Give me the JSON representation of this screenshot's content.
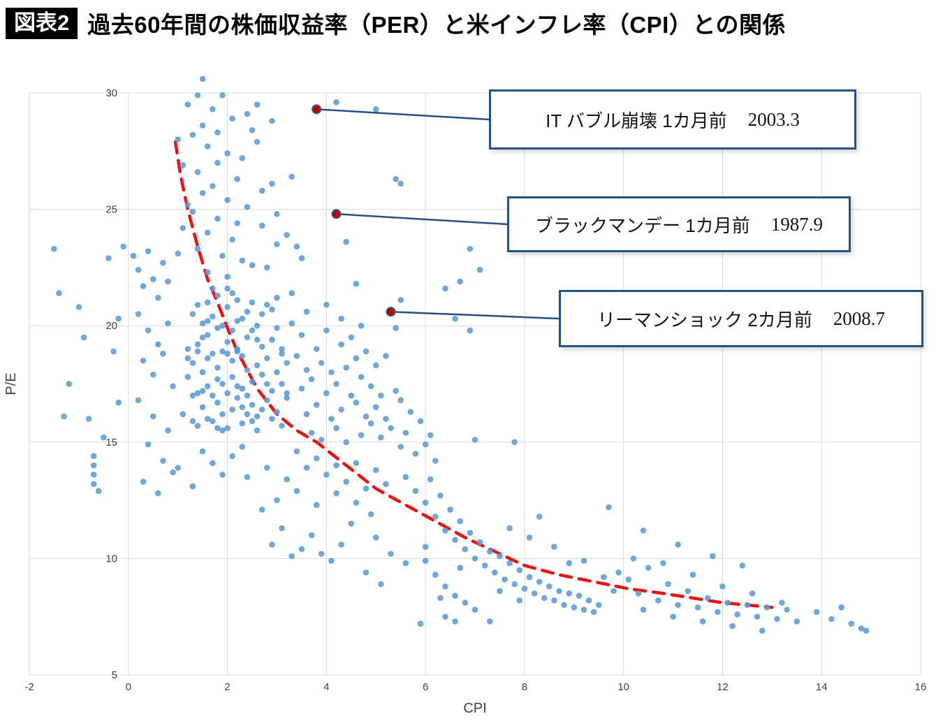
{
  "header": {
    "badge": "図表2",
    "title": "過去60年間の株価収益率（PER）と米インフレ率（CPI）との関係"
  },
  "chart_data": {
    "type": "scatter",
    "title": "過去60年間の株価収益率（PER）と米インフレ率（CPI）との関係",
    "xlabel": "CPI",
    "ylabel": "P/E",
    "xlim": [
      -2,
      16
    ],
    "ylim": [
      5,
      30
    ],
    "xticks": [
      -2,
      0,
      2,
      4,
      6,
      8,
      10,
      12,
      14,
      16
    ],
    "yticks": [
      5,
      10,
      15,
      20,
      25,
      30
    ],
    "grid": true,
    "point_color": "#5b9bd5",
    "highlight_color": "#c00000",
    "highlight_ring_color": "#2e5a88",
    "trend_color": "#f01010",
    "grid_color": "#d9d9d9",
    "leader_color": "#255083",
    "highlights": [
      {
        "cpi": 3.8,
        "pe": 29.3,
        "label": "IT バブル崩壊 1カ月前",
        "date": "2003.3"
      },
      {
        "cpi": 4.2,
        "pe": 24.8,
        "label": "ブラックマンデー 1カ月前",
        "date": "1987.9"
      },
      {
        "cpi": 5.3,
        "pe": 20.6,
        "label": "リーマンショック 2カ月前",
        "date": "2008.7"
      }
    ],
    "trend": {
      "style": "dashed",
      "points": [
        [
          0.95,
          27.9
        ],
        [
          1.05,
          26.5
        ],
        [
          1.2,
          25.0
        ],
        [
          1.4,
          23.4
        ],
        [
          1.6,
          22.0
        ],
        [
          1.8,
          21.0
        ],
        [
          2.0,
          19.9
        ],
        [
          2.2,
          18.9
        ],
        [
          2.6,
          17.3
        ],
        [
          3.0,
          16.2
        ],
        [
          3.4,
          15.5
        ],
        [
          3.8,
          15.0
        ],
        [
          4.4,
          14.0
        ],
        [
          5.0,
          13.0
        ],
        [
          5.6,
          12.3
        ],
        [
          6.2,
          11.6
        ],
        [
          6.8,
          10.9
        ],
        [
          7.4,
          10.3
        ],
        [
          8.0,
          9.7
        ],
        [
          8.7,
          9.3
        ],
        [
          9.4,
          9.0
        ],
        [
          10.1,
          8.7
        ],
        [
          10.8,
          8.5
        ],
        [
          11.4,
          8.3
        ],
        [
          12.0,
          8.1
        ],
        [
          12.5,
          8.0
        ],
        [
          13.0,
          7.9
        ]
      ]
    },
    "points": [
      [
        1.1,
        16.2
      ],
      [
        1.2,
        17.8
      ],
      [
        1.3,
        15.9
      ],
      [
        1.3,
        18.4
      ],
      [
        1.4,
        17.1
      ],
      [
        1.4,
        19.2
      ],
      [
        1.5,
        16.5
      ],
      [
        1.5,
        18.0
      ],
      [
        1.5,
        20.1
      ],
      [
        1.6,
        17.4
      ],
      [
        1.6,
        19.6
      ],
      [
        1.6,
        16.0
      ],
      [
        1.7,
        18.8
      ],
      [
        1.7,
        17.0
      ],
      [
        1.7,
        20.4
      ],
      [
        1.8,
        16.7
      ],
      [
        1.8,
        18.2
      ],
      [
        1.8,
        19.9
      ],
      [
        1.9,
        17.5
      ],
      [
        1.9,
        16.2
      ],
      [
        1.9,
        18.9
      ],
      [
        2.0,
        17.1
      ],
      [
        2.0,
        19.3
      ],
      [
        2.0,
        20.8
      ],
      [
        2.1,
        16.4
      ],
      [
        2.1,
        18.5
      ],
      [
        2.1,
        17.8
      ],
      [
        2.2,
        19.0
      ],
      [
        2.2,
        16.9
      ],
      [
        2.2,
        20.2
      ],
      [
        2.3,
        17.3
      ],
      [
        2.3,
        18.7
      ],
      [
        2.3,
        15.8
      ],
      [
        2.4,
        19.5
      ],
      [
        2.4,
        17.0
      ],
      [
        2.4,
        18.1
      ],
      [
        2.5,
        16.6
      ],
      [
        2.5,
        19.8
      ],
      [
        2.5,
        17.6
      ],
      [
        2.6,
        18.3
      ],
      [
        2.6,
        16.1
      ],
      [
        2.6,
        20.0
      ],
      [
        2.7,
        17.9
      ],
      [
        2.7,
        19.1
      ],
      [
        2.8,
        16.8
      ],
      [
        2.8,
        18.6
      ],
      [
        2.9,
        17.2
      ],
      [
        2.9,
        19.4
      ],
      [
        3.0,
        16.3
      ],
      [
        3.0,
        18.0
      ],
      [
        3.1,
        17.5
      ],
      [
        3.1,
        19.0
      ],
      [
        3.2,
        16.9
      ],
      [
        3.2,
        18.4
      ],
      [
        1.2,
        19.0
      ],
      [
        1.3,
        20.5
      ],
      [
        1.4,
        15.7
      ],
      [
        1.6,
        21.0
      ],
      [
        1.8,
        21.3
      ],
      [
        2.0,
        15.6
      ],
      [
        2.2,
        21.1
      ],
      [
        2.4,
        20.6
      ],
      [
        2.6,
        15.5
      ],
      [
        2.8,
        20.9
      ],
      [
        3.0,
        21.2
      ],
      [
        1.5,
        17.2
      ],
      [
        1.7,
        15.9
      ],
      [
        1.9,
        20.0
      ],
      [
        2.1,
        21.4
      ],
      [
        2.3,
        20.3
      ],
      [
        2.5,
        15.9
      ],
      [
        2.7,
        16.4
      ],
      [
        2.9,
        20.7
      ],
      [
        3.1,
        15.7
      ],
      [
        1.2,
        18.6
      ],
      [
        1.4,
        20.9
      ],
      [
        1.6,
        18.6
      ],
      [
        1.8,
        17.7
      ],
      [
        2.0,
        18.8
      ],
      [
        2.2,
        17.4
      ],
      [
        2.4,
        16.2
      ],
      [
        2.6,
        19.4
      ],
      [
        2.8,
        17.5
      ],
      [
        3.0,
        19.9
      ],
      [
        3.2,
        17.1
      ],
      [
        1.3,
        17.0
      ],
      [
        1.5,
        19.5
      ],
      [
        1.7,
        21.6
      ],
      [
        1.9,
        15.5
      ],
      [
        2.1,
        19.8
      ],
      [
        2.3,
        16.5
      ],
      [
        2.5,
        21.0
      ],
      [
        2.7,
        20.5
      ],
      [
        2.9,
        16.0
      ],
      [
        3.1,
        18.8
      ],
      [
        1.4,
        18.9
      ],
      [
        1.6,
        20.2
      ],
      [
        1.8,
        15.6
      ],
      [
        2.0,
        21.6
      ],
      [
        2.2,
        18.9
      ],
      [
        1.5,
        30.6
      ],
      [
        1.4,
        29.9
      ],
      [
        1.9,
        29.9
      ],
      [
        1.7,
        29.3
      ],
      [
        2.1,
        28.9
      ],
      [
        1.5,
        28.6
      ],
      [
        1.3,
        28.2
      ],
      [
        2.4,
        29.1
      ],
      [
        1.6,
        27.7
      ],
      [
        2.0,
        27.4
      ],
      [
        1.8,
        27.0
      ],
      [
        2.6,
        27.9
      ],
      [
        1.4,
        26.6
      ],
      [
        2.2,
        26.3
      ],
      [
        1.7,
        26.0
      ],
      [
        2.9,
        26.1
      ],
      [
        1.5,
        25.7
      ],
      [
        2.0,
        25.4
      ],
      [
        2.4,
        25.1
      ],
      [
        1.3,
        24.9
      ],
      [
        1.8,
        24.6
      ],
      [
        2.7,
        24.3
      ],
      [
        1.6,
        24.0
      ],
      [
        2.1,
        23.7
      ],
      [
        3.0,
        23.5
      ],
      [
        1.4,
        23.3
      ],
      [
        1.9,
        23.0
      ],
      [
        2.3,
        22.8
      ],
      [
        2.8,
        22.5
      ],
      [
        1.6,
        22.3
      ],
      [
        2.0,
        22.1
      ],
      [
        2.5,
        22.6
      ],
      [
        3.2,
        23.9
      ],
      [
        1.2,
        25.2
      ],
      [
        2.2,
        24.4
      ],
      [
        1.0,
        28.0
      ],
      [
        1.1,
        26.9
      ],
      [
        2.5,
        28.4
      ],
      [
        2.3,
        27.2
      ],
      [
        3.4,
        23.4
      ],
      [
        1.2,
        29.5
      ],
      [
        2.7,
        25.8
      ],
      [
        3.0,
        24.8
      ],
      [
        1.0,
        23.1
      ],
      [
        1.1,
        24.2
      ],
      [
        2.9,
        28.8
      ],
      [
        3.3,
        26.4
      ],
      [
        2.6,
        29.5
      ],
      [
        3.5,
        22.9
      ],
      [
        1.8,
        28.3
      ],
      [
        4.2,
        29.6
      ],
      [
        5.0,
        29.3
      ],
      [
        5.4,
        26.3
      ],
      [
        5.5,
        26.1
      ],
      [
        4.4,
        23.6
      ],
      [
        3.3,
        20.1
      ],
      [
        3.4,
        18.7
      ],
      [
        3.5,
        17.3
      ],
      [
        3.5,
        19.6
      ],
      [
        3.6,
        16.2
      ],
      [
        3.6,
        18.1
      ],
      [
        3.7,
        15.4
      ],
      [
        3.7,
        17.7
      ],
      [
        3.8,
        19.0
      ],
      [
        3.8,
        16.6
      ],
      [
        3.9,
        18.4
      ],
      [
        3.9,
        15.1
      ],
      [
        4.0,
        17.1
      ],
      [
        4.0,
        19.8
      ],
      [
        4.1,
        16.0
      ],
      [
        4.1,
        18.0
      ],
      [
        4.2,
        15.6
      ],
      [
        4.2,
        17.5
      ],
      [
        4.3,
        19.2
      ],
      [
        4.3,
        16.4
      ],
      [
        4.4,
        18.2
      ],
      [
        4.4,
        15.0
      ],
      [
        4.5,
        17.0
      ],
      [
        4.5,
        19.5
      ],
      [
        4.6,
        16.7
      ],
      [
        4.6,
        18.6
      ],
      [
        4.7,
        15.3
      ],
      [
        4.7,
        17.8
      ],
      [
        4.8,
        16.1
      ],
      [
        4.8,
        18.9
      ],
      [
        4.9,
        15.8
      ],
      [
        4.9,
        17.4
      ],
      [
        5.0,
        16.5
      ],
      [
        5.0,
        18.3
      ],
      [
        5.1,
        15.2
      ],
      [
        5.1,
        17.0
      ],
      [
        5.2,
        16.0
      ],
      [
        5.2,
        18.7
      ],
      [
        5.3,
        15.6
      ],
      [
        5.4,
        17.2
      ],
      [
        5.5,
        14.8
      ],
      [
        5.5,
        16.8
      ],
      [
        5.6,
        15.4
      ],
      [
        5.7,
        16.3
      ],
      [
        5.8,
        14.5
      ],
      [
        5.9,
        15.9
      ],
      [
        6.0,
        14.9
      ],
      [
        6.1,
        15.3
      ],
      [
        3.4,
        14.6
      ],
      [
        3.6,
        13.9
      ],
      [
        3.8,
        14.3
      ],
      [
        4.0,
        13.6
      ],
      [
        4.2,
        14.0
      ],
      [
        4.4,
        13.3
      ],
      [
        4.6,
        14.1
      ],
      [
        4.8,
        13.0
      ],
      [
        5.0,
        13.8
      ],
      [
        5.2,
        13.2
      ],
      [
        5.6,
        13.5
      ],
      [
        6.2,
        14.2
      ],
      [
        3.3,
        21.4
      ],
      [
        3.6,
        20.6
      ],
      [
        4.0,
        20.9
      ],
      [
        4.3,
        20.3
      ],
      [
        4.7,
        20.0
      ],
      [
        5.4,
        19.9
      ],
      [
        5.5,
        21.1
      ],
      [
        4.6,
        21.8
      ],
      [
        6.6,
        20.3
      ],
      [
        6.9,
        19.8
      ],
      [
        6.9,
        23.3
      ],
      [
        6.7,
        21.9
      ],
      [
        6.4,
        21.6
      ],
      [
        7.1,
        22.4
      ],
      [
        5.8,
        12.9
      ],
      [
        6.0,
        12.4
      ],
      [
        6.1,
        13.4
      ],
      [
        6.2,
        11.8
      ],
      [
        6.3,
        12.7
      ],
      [
        6.4,
        11.2
      ],
      [
        6.5,
        12.1
      ],
      [
        6.6,
        10.8
      ],
      [
        6.7,
        11.6
      ],
      [
        6.8,
        10.4
      ],
      [
        6.9,
        11.1
      ],
      [
        7.0,
        10.0
      ],
      [
        7.1,
        10.7
      ],
      [
        7.2,
        9.7
      ],
      [
        7.3,
        10.3
      ],
      [
        7.4,
        9.4
      ],
      [
        7.5,
        10.1
      ],
      [
        7.6,
        9.1
      ],
      [
        7.7,
        9.8
      ],
      [
        7.8,
        8.9
      ],
      [
        7.9,
        9.5
      ],
      [
        8.0,
        8.7
      ],
      [
        8.1,
        9.2
      ],
      [
        8.2,
        8.5
      ],
      [
        8.3,
        9.0
      ],
      [
        8.4,
        8.3
      ],
      [
        8.5,
        8.8
      ],
      [
        8.6,
        8.2
      ],
      [
        8.7,
        8.6
      ],
      [
        8.8,
        8.0
      ],
      [
        8.9,
        8.5
      ],
      [
        9.0,
        7.9
      ],
      [
        9.1,
        8.4
      ],
      [
        9.2,
        7.8
      ],
      [
        9.3,
        8.2
      ],
      [
        9.4,
        7.7
      ],
      [
        6.0,
        9.9
      ],
      [
        6.2,
        9.3
      ],
      [
        6.4,
        8.8
      ],
      [
        6.6,
        8.4
      ],
      [
        6.8,
        8.1
      ],
      [
        7.0,
        7.8
      ],
      [
        5.9,
        7.2
      ],
      [
        6.4,
        7.5
      ],
      [
        6.6,
        7.3
      ],
      [
        7.3,
        7.3
      ],
      [
        6.3,
        8.3
      ],
      [
        6.7,
        9.6
      ],
      [
        7.5,
        8.6
      ],
      [
        7.9,
        8.2
      ],
      [
        8.1,
        10.9
      ],
      [
        8.6,
        10.5
      ],
      [
        7.7,
        11.3
      ],
      [
        8.3,
        11.8
      ],
      [
        8.9,
        9.8
      ],
      [
        9.6,
        9.2
      ],
      [
        9.8,
        8.6
      ],
      [
        9.9,
        9.4
      ],
      [
        9.2,
        9.9
      ],
      [
        9.5,
        8.0
      ],
      [
        7.0,
        15.1
      ],
      [
        7.8,
        15.0
      ],
      [
        10.1,
        9.1
      ],
      [
        10.3,
        8.5
      ],
      [
        10.5,
        9.6
      ],
      [
        10.7,
        8.2
      ],
      [
        10.9,
        8.9
      ],
      [
        11.1,
        8.0
      ],
      [
        11.3,
        8.6
      ],
      [
        11.5,
        7.9
      ],
      [
        11.7,
        8.3
      ],
      [
        11.9,
        7.7
      ],
      [
        12.1,
        8.1
      ],
      [
        12.3,
        7.6
      ],
      [
        12.5,
        8.0
      ],
      [
        12.7,
        7.5
      ],
      [
        12.9,
        7.9
      ],
      [
        13.1,
        7.4
      ],
      [
        13.3,
        7.8
      ],
      [
        13.5,
        7.3
      ],
      [
        13.9,
        7.7
      ],
      [
        14.2,
        7.4
      ],
      [
        14.4,
        7.9
      ],
      [
        14.6,
        7.2
      ],
      [
        14.8,
        7.0
      ],
      [
        10.2,
        10.0
      ],
      [
        10.8,
        9.8
      ],
      [
        11.4,
        9.3
      ],
      [
        12.0,
        8.8
      ],
      [
        12.6,
        8.5
      ],
      [
        13.2,
        8.1
      ],
      [
        10.4,
        7.8
      ],
      [
        11.0,
        7.5
      ],
      [
        11.6,
        7.3
      ],
      [
        12.2,
        7.1
      ],
      [
        12.8,
        6.9
      ],
      [
        14.9,
        6.9
      ],
      [
        9.7,
        12.2
      ],
      [
        10.4,
        11.2
      ],
      [
        11.1,
        10.6
      ],
      [
        11.8,
        10.1
      ],
      [
        12.4,
        9.7
      ],
      [
        -1.5,
        23.3
      ],
      [
        -1.4,
        21.4
      ],
      [
        -1.2,
        17.5
      ],
      [
        -1.3,
        16.1
      ],
      [
        -0.8,
        16.0
      ],
      [
        -0.7,
        14.4
      ],
      [
        -0.7,
        14.0
      ],
      [
        -0.7,
        13.6
      ],
      [
        -0.7,
        13.2
      ],
      [
        -0.6,
        12.9
      ],
      [
        -0.5,
        15.2
      ],
      [
        -0.3,
        18.9
      ],
      [
        -0.2,
        20.3
      ],
      [
        -0.4,
        22.9
      ],
      [
        -0.1,
        23.4
      ],
      [
        -0.9,
        19.5
      ],
      [
        -1.0,
        20.8
      ],
      [
        -0.2,
        16.7
      ],
      [
        0.1,
        23.0
      ],
      [
        0.2,
        22.4
      ],
      [
        0.3,
        21.7
      ],
      [
        0.4,
        23.2
      ],
      [
        0.5,
        22.0
      ],
      [
        0.6,
        21.2
      ],
      [
        0.7,
        22.7
      ],
      [
        0.8,
        21.9
      ],
      [
        0.2,
        20.5
      ],
      [
        0.4,
        19.8
      ],
      [
        0.6,
        19.2
      ],
      [
        0.8,
        20.1
      ],
      [
        0.3,
        18.5
      ],
      [
        0.5,
        17.9
      ],
      [
        0.7,
        18.8
      ],
      [
        0.9,
        17.4
      ],
      [
        0.2,
        16.8
      ],
      [
        0.5,
        16.1
      ],
      [
        0.8,
        15.5
      ],
      [
        0.4,
        14.9
      ],
      [
        0.7,
        14.2
      ],
      [
        0.9,
        13.7
      ],
      [
        0.3,
        13.3
      ],
      [
        0.6,
        12.8
      ],
      [
        1.0,
        13.9
      ],
      [
        2.9,
        10.6
      ],
      [
        3.1,
        11.3
      ],
      [
        3.3,
        10.1
      ],
      [
        3.5,
        10.4
      ],
      [
        3.7,
        11.0
      ],
      [
        3.9,
        10.2
      ],
      [
        4.1,
        9.9
      ],
      [
        4.3,
        10.6
      ],
      [
        2.7,
        12.1
      ],
      [
        3.0,
        12.5
      ],
      [
        3.4,
        12.9
      ],
      [
        3.8,
        12.3
      ],
      [
        4.2,
        12.8
      ],
      [
        4.6,
        12.4
      ],
      [
        2.4,
        13.5
      ],
      [
        2.8,
        13.9
      ],
      [
        3.2,
        13.4
      ],
      [
        5.0,
        10.9
      ],
      [
        5.3,
        10.2
      ],
      [
        5.6,
        9.8
      ],
      [
        4.8,
        9.4
      ],
      [
        5.1,
        8.9
      ],
      [
        6.0,
        10.5
      ],
      [
        4.5,
        11.5
      ],
      [
        4.9,
        11.9
      ],
      [
        1.5,
        14.6
      ],
      [
        1.7,
        14.1
      ],
      [
        1.9,
        13.6
      ],
      [
        1.3,
        13.1
      ],
      [
        2.1,
        14.4
      ],
      [
        2.3,
        14.8
      ]
    ]
  }
}
